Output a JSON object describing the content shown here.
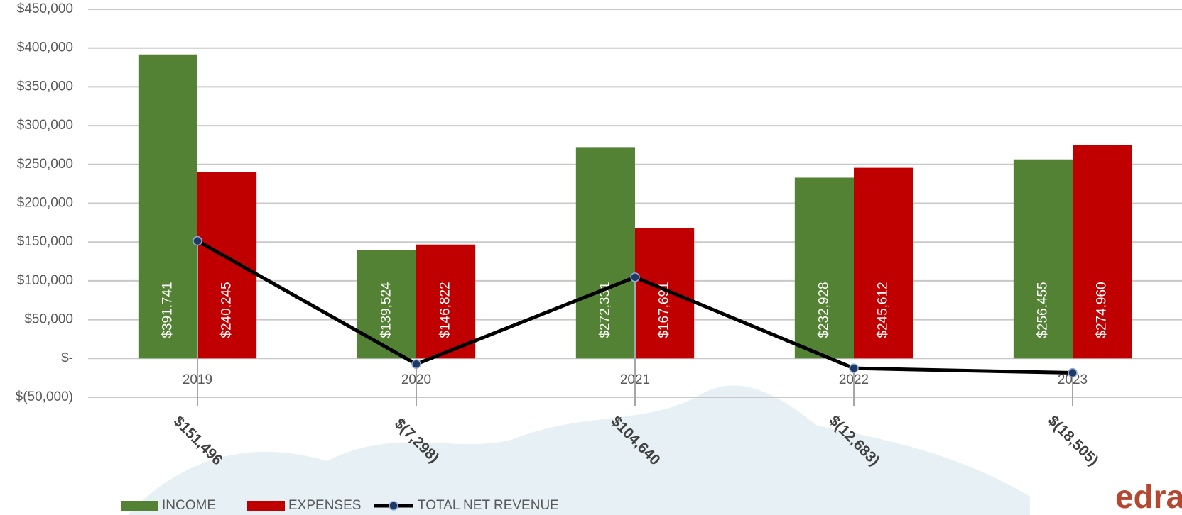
{
  "chart_data": {
    "type": "bar",
    "categories": [
      "2019",
      "2020",
      "2021",
      "2022",
      "2023"
    ],
    "series": [
      {
        "name": "INCOME",
        "color": "#548235",
        "values": [
          391741,
          139524,
          272331,
          232928,
          256455
        ],
        "value_labels": [
          "$391,741",
          "$139,524",
          "$272,331",
          "$232,928",
          "$256,455"
        ]
      },
      {
        "name": "EXPENSES",
        "color": "#c00000",
        "values": [
          240245,
          146822,
          167691,
          245612,
          274960
        ],
        "value_labels": [
          "$240,245",
          "$146,822",
          "$167,691",
          "$245,612",
          "$274,960"
        ]
      },
      {
        "name": "TOTAL NET REVENUE",
        "type": "line",
        "color": "#000000",
        "marker_color": "#1f3864",
        "values": [
          151496,
          -7298,
          104640,
          -12683,
          -18505
        ],
        "value_labels": [
          "$151,496",
          "$(7,298)",
          "$104,640",
          "$(12,683)",
          "$(18,505)"
        ]
      }
    ],
    "ylim": [
      -50000,
      450000
    ],
    "yticks": [
      {
        "value": -50000,
        "label": "$(50,000)"
      },
      {
        "value": 0,
        "label": "$-"
      },
      {
        "value": 50000,
        "label": "$50,000"
      },
      {
        "value": 100000,
        "label": "$100,000"
      },
      {
        "value": 150000,
        "label": "$150,000"
      },
      {
        "value": 200000,
        "label": "$200,000"
      },
      {
        "value": 250000,
        "label": "$250,000"
      },
      {
        "value": 300000,
        "label": "$300,000"
      },
      {
        "value": 350000,
        "label": "$350,000"
      },
      {
        "value": 400000,
        "label": "$400,000"
      },
      {
        "value": 450000,
        "label": "$450,000"
      }
    ],
    "grid": true,
    "legend": "bottom-left",
    "watermark": "edra"
  }
}
